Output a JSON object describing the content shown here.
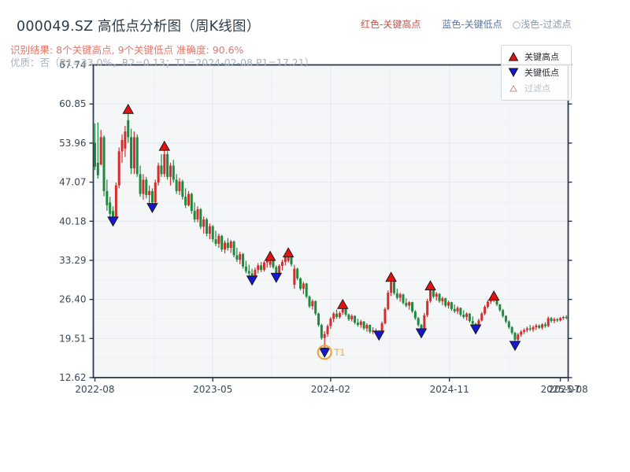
{
  "header": {
    "title": "000049.SZ 高低点分析图（周K线图）",
    "result_line": "识别结果: 8个关键高点, 9个关键低点  准确度: 90.6%",
    "quality_line": "优质：否（R1=33.0%，R2=0.13；T1=2024-02-08 P1=17.21）"
  },
  "top_legend": {
    "items": [
      {
        "label": "红色-关键高点",
        "color": "#c0564e"
      },
      {
        "label": "蓝色-关键低点",
        "color": "#5b77a0"
      },
      {
        "label": "○浅色-过滤点",
        "color": "#8d99a5"
      }
    ]
  },
  "chart_legend": {
    "items": [
      {
        "label": "关键高点",
        "marker": "triangle-up-red"
      },
      {
        "label": "关键低点",
        "marker": "triangle-down-blue"
      },
      {
        "label": "过滤点",
        "marker": "triangle-up-outline"
      }
    ]
  },
  "colors": {
    "candle_up": "#d32d2d",
    "candle_down": "#1f8a3e",
    "key_high_marker": "#e01212",
    "key_low_marker": "#1717cf",
    "marker_edge": "#161616",
    "filtered_marker_edge": "#cf8d84",
    "annotation_orange": "#eda53f",
    "axis": "#2b3a4a",
    "tick_label": "#3b4754",
    "grid_major": "#e4e9ed",
    "grid_minor": "#eef1f4",
    "plot_bg": "#f4f6f8"
  },
  "chart_data": {
    "type": "candlestick",
    "title": "000049.SZ 高低点分析图（周K线图）",
    "period": "weekly",
    "accuracy": "90.6%",
    "key_high_count": 8,
    "key_low_count": 9,
    "ylim": [
      12.62,
      67.74
    ],
    "y_ticks": [
      "67.74",
      "60.85",
      "53.96",
      "47.07",
      "40.18",
      "33.29",
      "26.40",
      "19.51",
      "12.62"
    ],
    "x_ticks": [
      {
        "label": "2022-08",
        "week": 0
      },
      {
        "label": "2023-05",
        "week": 39
      },
      {
        "label": "2024-02",
        "week": 78
      },
      {
        "label": "2024-11",
        "week": 117.3
      },
      {
        "label": "2025-07",
        "week": 154
      },
      {
        "label": "2025-08",
        "week": 156.6
      }
    ],
    "candles_ohlc": [
      [
        54,
        57.4,
        49.2,
        49.8
      ],
      [
        50.5,
        57.6,
        47.7,
        48.3
      ],
      [
        50.2,
        56.3,
        50,
        55
      ],
      [
        55,
        55.3,
        44.6,
        45.5
      ],
      [
        45.5,
        47.5,
        42,
        43
      ],
      [
        43.5,
        44.5,
        40.8,
        41.5
      ],
      [
        42,
        42.8,
        40.3,
        40.8
      ],
      [
        41,
        47,
        40.5,
        46.5
      ],
      [
        46.5,
        53.2,
        46,
        52.5
      ],
      [
        52.5,
        55.5,
        50.5,
        54.5
      ],
      [
        53,
        57,
        51.5,
        56
      ],
      [
        58,
        59.8,
        54,
        55
      ],
      [
        55,
        56.5,
        48.5,
        49.5
      ],
      [
        49.5,
        56,
        48.5,
        55
      ],
      [
        55,
        55.5,
        48,
        48.5
      ],
      [
        48.5,
        50,
        44.5,
        45
      ],
      [
        45,
        48.5,
        44,
        47.5
      ],
      [
        47.5,
        48,
        44.2,
        44.8
      ],
      [
        44.8,
        46.5,
        43,
        45.5
      ],
      [
        45.5,
        46,
        42.7,
        43.5
      ],
      [
        43.5,
        47.5,
        43,
        47
      ],
      [
        47,
        50.5,
        46.5,
        50
      ],
      [
        50,
        52,
        48,
        48.5
      ],
      [
        48.5,
        53.3,
        48,
        52
      ],
      [
        52,
        52.5,
        47.5,
        48
      ],
      [
        48,
        50.5,
        46.5,
        50
      ],
      [
        50,
        51,
        47,
        47.5
      ],
      [
        47.5,
        48.5,
        45,
        45.5
      ],
      [
        45.5,
        47.8,
        44.8,
        47.2
      ],
      [
        47.2,
        47.5,
        44,
        44.5
      ],
      [
        44.5,
        46,
        42.5,
        43
      ],
      [
        43,
        45.5,
        42.8,
        45
      ],
      [
        45,
        45.2,
        41.5,
        42
      ],
      [
        42,
        43.5,
        40,
        40.5
      ],
      [
        40.5,
        42.8,
        40,
        42.3
      ],
      [
        42.3,
        42.5,
        38.8,
        39.2
      ],
      [
        39.2,
        41,
        38,
        40.5
      ],
      [
        40.5,
        40.8,
        37.5,
        38
      ],
      [
        38,
        39.8,
        37,
        39.3
      ],
      [
        39.3,
        39.5,
        36.5,
        37
      ],
      [
        37,
        38.5,
        35.8,
        36.2
      ],
      [
        36.2,
        38,
        35.5,
        37.6
      ],
      [
        37.6,
        37.8,
        34.8,
        35.2
      ],
      [
        35.2,
        36.8,
        34.5,
        36.4
      ],
      [
        36.4,
        37.2,
        35,
        35.5
      ],
      [
        35.5,
        36.9,
        34.6,
        36.6
      ],
      [
        36.6,
        36.8,
        33.8,
        34.2
      ],
      [
        34.2,
        35.5,
        33,
        33.4
      ],
      [
        33.4,
        34.8,
        32.6,
        34.4
      ],
      [
        34.4,
        34.6,
        31.8,
        32.2
      ],
      [
        32.2,
        33.2,
        31,
        31.4
      ],
      [
        31.4,
        32.5,
        30.6,
        31
      ],
      [
        31,
        31.8,
        29.9,
        30.3
      ],
      [
        30.3,
        32,
        30,
        31.6
      ],
      [
        31.6,
        32.8,
        31,
        32.4
      ],
      [
        32.4,
        33,
        31.2,
        31.6
      ],
      [
        31.6,
        33.2,
        31.3,
        32.9
      ],
      [
        32.9,
        33.6,
        32,
        33.3
      ],
      [
        32.5,
        33.9,
        32,
        33.5
      ],
      [
        33.5,
        33.7,
        31.8,
        32.1
      ],
      [
        32.1,
        32.4,
        30.4,
        30.8
      ],
      [
        30.8,
        32.6,
        30.5,
        32.3
      ],
      [
        32.3,
        33.4,
        31.5,
        33
      ],
      [
        33,
        34.4,
        32.4,
        34
      ],
      [
        33.2,
        34.5,
        32.9,
        34.2
      ],
      [
        34.2,
        34.3,
        32.2,
        32.6
      ],
      [
        29,
        32.5,
        28.3,
        31.8
      ],
      [
        31.8,
        32,
        29.8,
        30.1
      ],
      [
        30.1,
        30.3,
        28,
        28.3
      ],
      [
        28.3,
        29.5,
        27.3,
        29.2
      ],
      [
        29.2,
        29.3,
        26.6,
        26.9
      ],
      [
        26.9,
        27.1,
        24.9,
        25.2
      ],
      [
        25.2,
        26.4,
        24.6,
        26.1
      ],
      [
        26.1,
        26.2,
        23.6,
        23.9
      ],
      [
        23.9,
        24.1,
        21.6,
        21.9
      ],
      [
        21.9,
        22.1,
        19.3,
        19.6
      ],
      [
        19.6,
        20.8,
        17.21,
        20.3
      ],
      [
        20.3,
        22,
        19.8,
        21.7
      ],
      [
        21.7,
        23.3,
        21.2,
        23
      ],
      [
        23,
        24.2,
        22.4,
        23.9
      ],
      [
        23.9,
        24.6,
        23,
        23.3
      ],
      [
        23.3,
        24.3,
        23,
        24
      ],
      [
        24.1,
        25.4,
        23.7,
        25
      ],
      [
        25,
        25.1,
        23.4,
        23.7
      ],
      [
        23.7,
        23.9,
        22.6,
        22.9
      ],
      [
        22.9,
        23.8,
        22.5,
        23.5
      ],
      [
        23.5,
        23.6,
        22,
        22.3
      ],
      [
        22.3,
        23,
        21.6,
        21.9
      ],
      [
        21.9,
        22.8,
        21.4,
        22.5
      ],
      [
        22.5,
        22.6,
        21,
        21.3
      ],
      [
        21.3,
        22.2,
        20.7,
        21.9
      ],
      [
        21.9,
        22,
        20.4,
        20.7
      ],
      [
        20.7,
        21.5,
        20.3,
        20.9
      ],
      [
        20.9,
        21.3,
        20.3,
        20.6
      ],
      [
        20.6,
        21,
        20.2,
        20.8
      ],
      [
        20.8,
        22.5,
        20.6,
        22.2
      ],
      [
        22.2,
        25,
        22,
        24.7
      ],
      [
        24.7,
        28,
        24.5,
        27.6
      ],
      [
        27.6,
        30.2,
        27,
        29.5
      ],
      [
        29.5,
        29.7,
        27.2,
        27.5
      ],
      [
        27.5,
        28.3,
        26.4,
        26.7
      ],
      [
        26.7,
        27.6,
        26,
        27.3
      ],
      [
        27.3,
        27.4,
        25.5,
        25.8
      ],
      [
        25.8,
        26.6,
        25,
        25.3
      ],
      [
        25.3,
        26.1,
        24.6,
        25.9
      ],
      [
        25.9,
        26,
        24,
        24.3
      ],
      [
        24.3,
        24.5,
        22.8,
        23.1
      ],
      [
        23.1,
        23.3,
        21.6,
        21.9
      ],
      [
        21.9,
        22.1,
        20.6,
        20.9
      ],
      [
        20.9,
        24,
        20.7,
        23.6
      ],
      [
        23.6,
        26.5,
        23.3,
        26.1
      ],
      [
        26.1,
        28.7,
        25.8,
        28.3
      ],
      [
        28.3,
        28.5,
        26.6,
        26.9
      ],
      [
        26.9,
        27.7,
        26.2,
        27.4
      ],
      [
        27.4,
        27.5,
        25.8,
        26.1
      ],
      [
        26.1,
        26.9,
        25.4,
        26.6
      ],
      [
        26.6,
        26.7,
        25,
        25.3
      ],
      [
        25.3,
        26.2,
        24.8,
        25.9
      ],
      [
        25.9,
        26,
        24.4,
        24.7
      ],
      [
        24.7,
        25.5,
        24,
        24.3
      ],
      [
        24.3,
        25.2,
        23.8,
        24.9
      ],
      [
        24.9,
        25,
        23.4,
        23.7
      ],
      [
        23.7,
        24.5,
        23,
        23.3
      ],
      [
        23.3,
        24.1,
        22.7,
        23.9
      ],
      [
        23.9,
        24,
        22.3,
        22.6
      ],
      [
        22.6,
        23.4,
        21.9,
        22.1
      ],
      [
        22.1,
        22.3,
        21.3,
        21.6
      ],
      [
        21.6,
        23,
        21.4,
        22.7
      ],
      [
        22.7,
        24.2,
        22.5,
        23.9
      ],
      [
        23.9,
        25.4,
        23.6,
        25.1
      ],
      [
        25.1,
        26.3,
        24.8,
        26
      ],
      [
        26,
        26.7,
        25.6,
        26.4
      ],
      [
        26.4,
        26.9,
        25.9,
        26.6
      ],
      [
        26.6,
        26.7,
        25.2,
        25.5
      ],
      [
        25.5,
        25.6,
        24.2,
        24.5
      ],
      [
        24.5,
        24.7,
        23.2,
        23.5
      ],
      [
        23.5,
        23.6,
        22.2,
        22.5
      ],
      [
        22.5,
        22.7,
        21.2,
        21.5
      ],
      [
        21.5,
        21.7,
        20.2,
        20.5
      ],
      [
        20.5,
        20.7,
        18.4,
        19.3
      ],
      [
        19.3,
        20.5,
        19,
        20.2
      ],
      [
        20.2,
        21,
        19.8,
        20.7
      ],
      [
        20.7,
        21.3,
        20.3,
        21
      ],
      [
        21,
        21.6,
        20.6,
        21.3
      ],
      [
        21.3,
        21.9,
        20.8,
        21.1
      ],
      [
        21.1,
        21.8,
        20.7,
        21.5
      ],
      [
        21.5,
        22.1,
        21,
        21.8
      ],
      [
        21.8,
        22,
        21.2,
        21.4
      ],
      [
        21.4,
        22.2,
        21.1,
        22
      ],
      [
        22,
        22.4,
        21.4,
        21.7
      ],
      [
        21.7,
        23.4,
        21.5,
        23.1
      ],
      [
        23.1,
        23.3,
        22.3,
        22.6
      ],
      [
        22.6,
        23.2,
        22.2,
        22.9
      ],
      [
        22.9,
        23.1,
        22.4,
        22.7
      ],
      [
        22.7,
        23.3,
        22.5,
        23.1
      ],
      [
        23.1,
        23.5,
        22.8,
        23.3
      ],
      [
        23.3,
        23.6,
        22.9,
        23.2
      ]
    ],
    "key_highs": [
      {
        "week": 11,
        "price": 59.8
      },
      {
        "week": 23,
        "price": 53.3
      },
      {
        "week": 58,
        "price": 33.9
      },
      {
        "week": 64,
        "price": 34.5
      },
      {
        "week": 82,
        "price": 25.4
      },
      {
        "week": 98,
        "price": 30.2
      },
      {
        "week": 111,
        "price": 28.7
      },
      {
        "week": 132,
        "price": 26.9
      }
    ],
    "key_lows": [
      {
        "week": 6,
        "price": 40.3
      },
      {
        "week": 19,
        "price": 42.7
      },
      {
        "week": 52,
        "price": 29.9
      },
      {
        "week": 60,
        "price": 30.4
      },
      {
        "week": 76,
        "price": 17.21
      },
      {
        "week": 94,
        "price": 20.2
      },
      {
        "week": 108,
        "price": 20.6
      },
      {
        "week": 126,
        "price": 21.3
      },
      {
        "week": 139,
        "price": 18.4
      }
    ],
    "annotation": {
      "label": "T1",
      "week": 76,
      "price": 17.21,
      "date": "2024-02-08"
    }
  }
}
